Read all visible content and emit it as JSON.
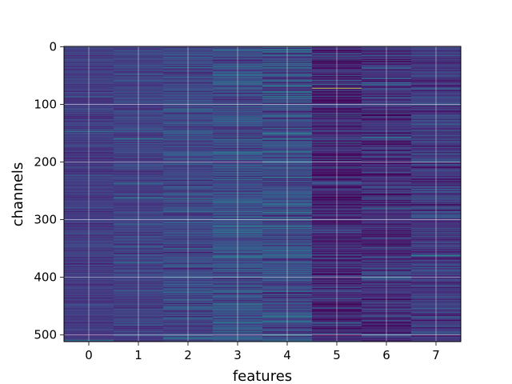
{
  "chart_data": {
    "type": "heatmap",
    "title": "",
    "xlabel": "features",
    "ylabel": "channels",
    "x_categories": [
      "0",
      "1",
      "2",
      "3",
      "4",
      "5",
      "6",
      "7"
    ],
    "y_ticks": [
      "0",
      "100",
      "200",
      "300",
      "400",
      "500"
    ],
    "y_tick_values": [
      0,
      100,
      200,
      300,
      400,
      500
    ],
    "xlim": [
      -0.5,
      7.5
    ],
    "ylim": [
      511.5,
      -0.5
    ],
    "grid": true,
    "colormap": "viridis",
    "n_rows": 512,
    "n_cols": 8,
    "column_mean_intensity": [
      0.22,
      0.24,
      0.27,
      0.3,
      0.3,
      0.14,
      0.17,
      0.22
    ],
    "column_spread": [
      0.05,
      0.06,
      0.08,
      0.1,
      0.12,
      0.12,
      0.11,
      0.1
    ],
    "highlights": [
      {
        "feature": 5,
        "channel": 72,
        "value": 0.95
      },
      {
        "feature": 6,
        "channel": 66,
        "value": 0.62
      },
      {
        "feature": 3,
        "channel": 300,
        "value": 0.62
      },
      {
        "feature": 4,
        "channel": 183,
        "value": 0.6
      },
      {
        "feature": 1,
        "channel": 262,
        "value": 0.55
      },
      {
        "feature": 7,
        "channel": 362,
        "value": 0.58
      },
      {
        "feature": 3,
        "channel": 447,
        "value": 0.55
      },
      {
        "feature": 4,
        "channel": 462,
        "value": 0.55
      }
    ]
  }
}
